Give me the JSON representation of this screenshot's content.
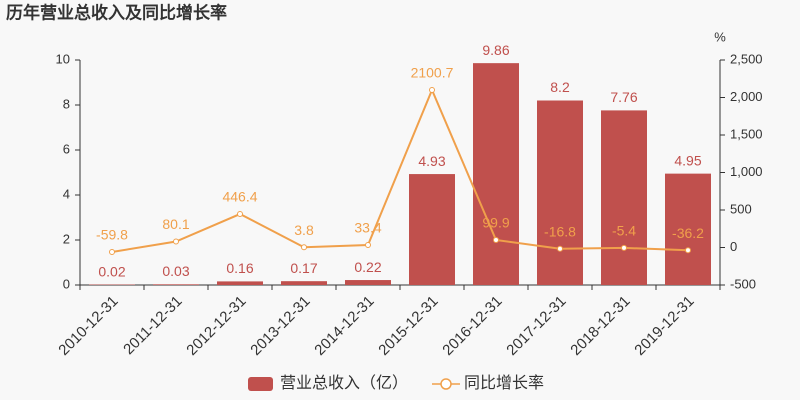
{
  "chart_data": {
    "type": "bar",
    "title": "历年营业总收入及同比增长率",
    "categories": [
      "2010-12-31",
      "2011-12-31",
      "2012-12-31",
      "2013-12-31",
      "2014-12-31",
      "2015-12-31",
      "2016-12-31",
      "2017-12-31",
      "2018-12-31",
      "2019-12-31"
    ],
    "series": [
      {
        "name": "营业总收入（亿）",
        "type": "bar",
        "color": "#c0504d",
        "values": [
          0.02,
          0.03,
          0.16,
          0.17,
          0.22,
          4.93,
          9.86,
          8.2,
          7.76,
          4.95
        ]
      },
      {
        "name": "同比增长率",
        "type": "line",
        "axis": "y2",
        "color": "#f0a04b",
        "values": [
          -59.8,
          80.1,
          446.4,
          3.8,
          33.4,
          2100.7,
          99.9,
          -16.8,
          -5.4,
          -36.2
        ]
      }
    ],
    "ylim": [
      0,
      10
    ],
    "yticks": [
      0,
      2,
      4,
      6,
      8,
      10
    ],
    "y2label": "%",
    "y2lim": [
      -500,
      2500
    ],
    "y2ticks": [
      -500,
      0,
      500,
      {
        "value": 1000,
        "label": "1,000"
      },
      {
        "value": 1500,
        "label": "1,500"
      },
      {
        "value": 2000,
        "label": "2,000"
      },
      {
        "value": 2500,
        "label": "2,500"
      }
    ],
    "grid": false
  }
}
